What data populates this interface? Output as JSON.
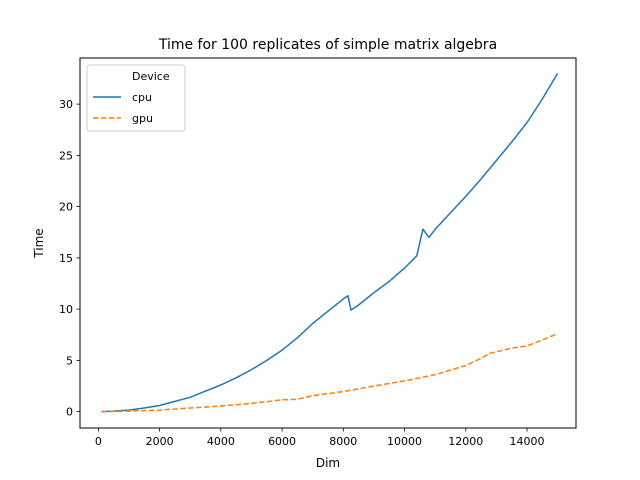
{
  "chart_data": {
    "type": "line",
    "title": "Time for 100 replicates of simple matrix algebra",
    "xlabel": "Dim",
    "ylabel": "Time",
    "xlim": [
      -600,
      15600
    ],
    "ylim": [
      -1.6,
      34.5
    ],
    "xticks": [
      0,
      2000,
      4000,
      6000,
      8000,
      10000,
      12000,
      14000
    ],
    "yticks": [
      0,
      5,
      10,
      15,
      20,
      25,
      30
    ],
    "grid": false,
    "legend": {
      "title": "Device",
      "position": "top-left"
    },
    "series": [
      {
        "name": "cpu",
        "color": "#1f77b4",
        "style": "solid",
        "points": [
          [
            100,
            0.0
          ],
          [
            500,
            0.05
          ],
          [
            1000,
            0.15
          ],
          [
            1500,
            0.35
          ],
          [
            2000,
            0.6
          ],
          [
            2500,
            1.0
          ],
          [
            3000,
            1.4
          ],
          [
            3500,
            2.0
          ],
          [
            4000,
            2.6
          ],
          [
            4500,
            3.3
          ],
          [
            5000,
            4.1
          ],
          [
            5500,
            5.0
          ],
          [
            6000,
            6.0
          ],
          [
            6500,
            7.2
          ],
          [
            7000,
            8.6
          ],
          [
            7500,
            9.8
          ],
          [
            8000,
            11.0
          ],
          [
            8150,
            11.3
          ],
          [
            8250,
            9.9
          ],
          [
            8500,
            10.4
          ],
          [
            9000,
            11.6
          ],
          [
            9500,
            12.7
          ],
          [
            10000,
            14.0
          ],
          [
            10400,
            15.2
          ],
          [
            10600,
            17.8
          ],
          [
            10800,
            17.0
          ],
          [
            11000,
            17.8
          ],
          [
            11500,
            19.4
          ],
          [
            12000,
            21.0
          ],
          [
            12500,
            22.7
          ],
          [
            13000,
            24.5
          ],
          [
            13500,
            26.3
          ],
          [
            14000,
            28.2
          ],
          [
            14500,
            30.5
          ],
          [
            15000,
            33.0
          ]
        ]
      },
      {
        "name": "gpu",
        "color": "#ff7f0e",
        "style": "dashed",
        "points": [
          [
            100,
            0.0
          ],
          [
            1000,
            0.05
          ],
          [
            2000,
            0.15
          ],
          [
            3000,
            0.35
          ],
          [
            4000,
            0.55
          ],
          [
            5000,
            0.8
          ],
          [
            6000,
            1.15
          ],
          [
            6500,
            1.2
          ],
          [
            7000,
            1.55
          ],
          [
            8000,
            1.95
          ],
          [
            9000,
            2.5
          ],
          [
            10000,
            3.0
          ],
          [
            11000,
            3.6
          ],
          [
            12000,
            4.5
          ],
          [
            12500,
            5.2
          ],
          [
            12800,
            5.7
          ],
          [
            13500,
            6.2
          ],
          [
            14000,
            6.4
          ],
          [
            14500,
            7.0
          ],
          [
            15000,
            7.6
          ]
        ]
      }
    ]
  }
}
